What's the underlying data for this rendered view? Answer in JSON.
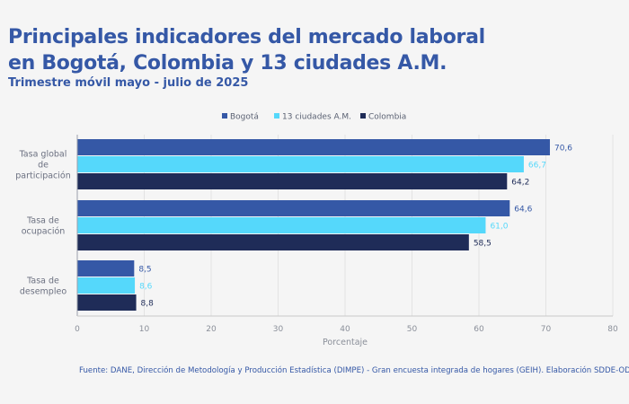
{
  "title": "Principales indicadores del mercado laboral\nen Bogotá, Colombia y 13 ciudades A.M.",
  "subtitle": "Trimestre móvil mayo - julio de 2025",
  "source": "Fuente: DANE, Dirección de Metodología y Producción Estadística (DIMPE) - Gran encuesta integrada de hogares (GEIH). Elaboración SDDE-ODEB.",
  "colors": {
    "Bogotá": "#3558a6",
    "13 ciudades A.M.": "#55d8fb",
    "Colombia": "#1f2c58",
    "label_light": "#55d8fb",
    "label_blue": "#3558a6",
    "label_dark": "#1f2c58"
  },
  "chart_data": {
    "type": "bar",
    "orientation": "horizontal",
    "categories": [
      [
        "Tasa global",
        "de",
        "participación"
      ],
      [
        "Tasa de",
        "ocupación"
      ],
      [
        "Tasa de",
        "desempleo"
      ]
    ],
    "series": [
      {
        "name": "Bogotá",
        "values": [
          70.6,
          64.6,
          8.5
        ],
        "labels": [
          "70,6",
          "64,6",
          "8,5"
        ]
      },
      {
        "name": "13 ciudades A.M.",
        "values": [
          66.7,
          61.0,
          8.6
        ],
        "labels": [
          "66,7",
          "61,0",
          "8,6"
        ]
      },
      {
        "name": "Colombia",
        "values": [
          64.2,
          58.5,
          8.8
        ],
        "labels": [
          "64,2",
          "58,5",
          "8,8"
        ]
      }
    ],
    "xlabel": "Porcentaje",
    "xlim": [
      0,
      80
    ],
    "xticks": [
      0,
      10,
      20,
      30,
      40,
      50,
      60,
      70,
      80
    ],
    "grid": true,
    "legend": "top-right"
  }
}
